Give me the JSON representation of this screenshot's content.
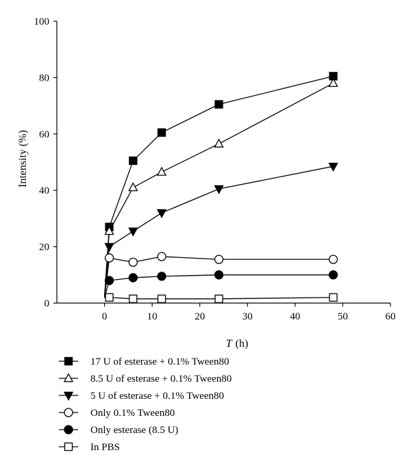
{
  "chart_data": {
    "type": "line",
    "title": "",
    "xlabel_var": "T",
    "xlabel_unit": "(h)",
    "ylabel": "Intensity (%)",
    "xlim": [
      -10,
      60
    ],
    "ylim": [
      0,
      100
    ],
    "xticks": [
      0,
      10,
      20,
      30,
      40,
      50,
      60
    ],
    "yticks": [
      0,
      20,
      40,
      60,
      80,
      100
    ],
    "grid": false,
    "legend_position": "bottom",
    "series": [
      {
        "name": "17 U of esterase + 0.1% Tween80",
        "marker": "square-filled",
        "x": [
          0,
          1,
          6,
          12,
          24,
          48
        ],
        "y": [
          2,
          27,
          50.5,
          60.5,
          70.5,
          80.5
        ]
      },
      {
        "name": "8.5 U of esterase + 0.1% Tween80",
        "marker": "triangle-up-open",
        "x": [
          0,
          1,
          6,
          12,
          24,
          48
        ],
        "y": [
          2,
          25.5,
          41,
          46.5,
          56.5,
          78
        ]
      },
      {
        "name": "5 U of esterase + 0.1% Tween80",
        "marker": "triangle-down-filled",
        "x": [
          0,
          1,
          6,
          12,
          24,
          48
        ],
        "y": [
          2,
          20,
          25.5,
          32,
          40.5,
          48.5
        ]
      },
      {
        "name": "Only 0.1% Tween80",
        "marker": "circle-open",
        "x": [
          0,
          1,
          6,
          12,
          24,
          48
        ],
        "y": [
          2,
          16,
          14.5,
          16.5,
          15.5,
          15.5
        ]
      },
      {
        "name": "Only esterase (8.5 U)",
        "marker": "circle-filled",
        "x": [
          0,
          1,
          6,
          12,
          24,
          48
        ],
        "y": [
          2,
          8,
          9,
          9.5,
          10,
          10
        ]
      },
      {
        "name": "In PBS",
        "marker": "square-open",
        "x": [
          0,
          1,
          6,
          12,
          24,
          48
        ],
        "y": [
          2,
          2,
          1.5,
          1.5,
          1.5,
          2
        ]
      }
    ]
  }
}
